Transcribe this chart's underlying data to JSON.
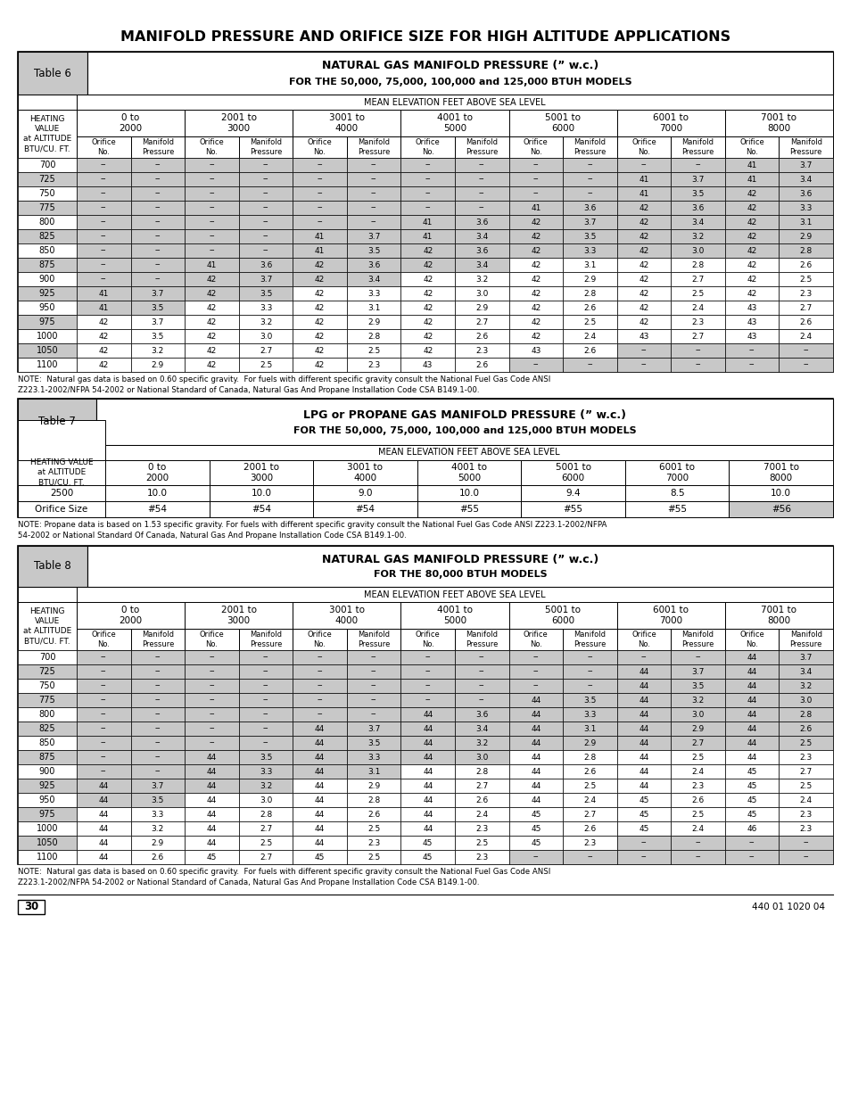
{
  "title": "MANIFOLD PRESSURE AND ORIFICE SIZE FOR HIGH ALTITUDE APPLICATIONS",
  "table6_header1": "NATURAL GAS MANIFOLD PRESSURE (” w.c.)",
  "table6_header2": "FOR THE 50,000, 75,000, 100,000 and 125,000 BTUH MODELS",
  "table7_header1": "LPG or PROPANE GAS MANIFOLD PRESSURE (” w.c.)",
  "table7_header2": "FOR THE 50,000, 75,000, 100,000 and 125,000 BTUH MODELS",
  "table8_header1": "NATURAL GAS MANIFOLD PRESSURE (” w.c.)",
  "table8_header2": "FOR THE 80,000 BTUH MODELS",
  "elevation_header": "MEAN ELEVATION FEET ABOVE SEA LEVEL",
  "elevation_ranges": [
    "0 to\n2000",
    "2001 to\n3000",
    "3001 to\n4000",
    "4001 to\n5000",
    "5001 to\n6000",
    "6001 to\n7000",
    "7001 to\n8000"
  ],
  "heating_label": "HEATING\nVALUE\nat ALTITUDE\nBTU/CU. FT.",
  "heating_label_t7": "HEATING VALUE\nat ALTITUDE\nBTU/CU. FT.",
  "btu_rows_t6": [
    700,
    725,
    750,
    775,
    800,
    825,
    850,
    875,
    900,
    925,
    950,
    975,
    1000,
    1050,
    1100
  ],
  "table6_data": [
    [
      "--",
      "--",
      "--",
      "--",
      "--",
      "--",
      "--",
      "--",
      "--",
      "--",
      "--",
      "--",
      "41",
      "3.7"
    ],
    [
      "--",
      "--",
      "--",
      "--",
      "--",
      "--",
      "--",
      "--",
      "--",
      "--",
      "41",
      "3.7",
      "41",
      "3.4"
    ],
    [
      "--",
      "--",
      "--",
      "--",
      "--",
      "--",
      "--",
      "--",
      "--",
      "--",
      "41",
      "3.5",
      "42",
      "3.6"
    ],
    [
      "--",
      "--",
      "--",
      "--",
      "--",
      "--",
      "--",
      "--",
      "41",
      "3.6",
      "42",
      "3.6",
      "42",
      "3.3"
    ],
    [
      "--",
      "--",
      "--",
      "--",
      "--",
      "--",
      "41",
      "3.6",
      "42",
      "3.7",
      "42",
      "3.4",
      "42",
      "3.1"
    ],
    [
      "--",
      "--",
      "--",
      "--",
      "41",
      "3.7",
      "41",
      "3.4",
      "42",
      "3.5",
      "42",
      "3.2",
      "42",
      "2.9"
    ],
    [
      "--",
      "--",
      "--",
      "--",
      "41",
      "3.5",
      "42",
      "3.6",
      "42",
      "3.3",
      "42",
      "3.0",
      "42",
      "2.8"
    ],
    [
      "--",
      "--",
      "41",
      "3.6",
      "42",
      "3.6",
      "42",
      "3.4",
      "42",
      "3.1",
      "42",
      "2.8",
      "42",
      "2.6"
    ],
    [
      "--",
      "--",
      "42",
      "3.7",
      "42",
      "3.4",
      "42",
      "3.2",
      "42",
      "2.9",
      "42",
      "2.7",
      "42",
      "2.5"
    ],
    [
      "41",
      "3.7",
      "42",
      "3.5",
      "42",
      "3.3",
      "42",
      "3.0",
      "42",
      "2.8",
      "42",
      "2.5",
      "42",
      "2.3"
    ],
    [
      "41",
      "3.5",
      "42",
      "3.3",
      "42",
      "3.1",
      "42",
      "2.9",
      "42",
      "2.6",
      "42",
      "2.4",
      "43",
      "2.7"
    ],
    [
      "42",
      "3.7",
      "42",
      "3.2",
      "42",
      "2.9",
      "42",
      "2.7",
      "42",
      "2.5",
      "42",
      "2.3",
      "43",
      "2.6"
    ],
    [
      "42",
      "3.5",
      "42",
      "3.0",
      "42",
      "2.8",
      "42",
      "2.6",
      "42",
      "2.4",
      "43",
      "2.7",
      "43",
      "2.4"
    ],
    [
      "42",
      "3.2",
      "42",
      "2.7",
      "42",
      "2.5",
      "42",
      "2.3",
      "43",
      "2.6",
      "--",
      "--",
      "--",
      "--"
    ],
    [
      "42",
      "2.9",
      "42",
      "2.5",
      "42",
      "2.3",
      "43",
      "2.6",
      "--",
      "--",
      "--",
      "--",
      "--",
      "--"
    ]
  ],
  "table6_shaded": {
    "0": [
      0,
      1,
      2,
      3,
      4,
      5,
      6,
      7,
      8,
      9,
      10,
      11,
      12,
      13
    ],
    "1": [
      0,
      1,
      2,
      3,
      4,
      5,
      6,
      7,
      8,
      9,
      10,
      11,
      12,
      13
    ],
    "2": [
      0,
      1,
      2,
      3,
      4,
      5,
      6,
      7,
      8,
      9,
      10,
      11,
      12,
      13
    ],
    "3": [
      0,
      1,
      2,
      3,
      4,
      5,
      6,
      7,
      8,
      9,
      10,
      11,
      12,
      13
    ],
    "4": [
      0,
      1,
      2,
      3,
      4,
      5,
      6,
      7,
      8,
      9,
      10,
      11,
      12,
      13
    ],
    "5": [
      0,
      1,
      2,
      3,
      4,
      5,
      6,
      7,
      8,
      9,
      10,
      11,
      12,
      13
    ],
    "6": [
      0,
      1,
      2,
      3,
      4,
      5,
      6,
      7,
      8,
      9,
      10,
      11,
      12,
      13
    ],
    "7": [
      0,
      1,
      2,
      3,
      4,
      5,
      6,
      7
    ],
    "8": [
      0,
      1,
      2,
      3,
      4,
      5
    ],
    "9": [
      0,
      1,
      2,
      3
    ],
    "10": [
      0,
      1
    ],
    "11": [],
    "12": [],
    "13": [
      10,
      11,
      12,
      13
    ],
    "14": [
      8,
      9,
      10,
      11,
      12,
      13
    ]
  },
  "table6_btu_shaded": [
    false,
    true,
    false,
    true,
    false,
    true,
    false,
    true,
    false,
    true,
    false,
    true,
    false,
    true,
    false
  ],
  "table7_btu": "2500",
  "table7_pressure": [
    "10.0",
    "10.0",
    "9.0",
    "10.0",
    "9.4",
    "8.5",
    "10.0"
  ],
  "table7_orifice": [
    "#54",
    "#54",
    "#54",
    "#55",
    "#55",
    "#55",
    "#56"
  ],
  "table7_shaded_orifice": [
    false,
    false,
    false,
    false,
    false,
    false,
    true
  ],
  "btu_rows_t8": [
    700,
    725,
    750,
    775,
    800,
    825,
    850,
    875,
    900,
    925,
    950,
    975,
    1000,
    1050,
    1100
  ],
  "table8_data": [
    [
      "--",
      "--",
      "--",
      "--",
      "--",
      "--",
      "--",
      "--",
      "--",
      "--",
      "--",
      "--",
      "44",
      "3.7"
    ],
    [
      "--",
      "--",
      "--",
      "--",
      "--",
      "--",
      "--",
      "--",
      "--",
      "--",
      "44",
      "3.7",
      "44",
      "3.4"
    ],
    [
      "--",
      "--",
      "--",
      "--",
      "--",
      "--",
      "--",
      "--",
      "--",
      "--",
      "44",
      "3.5",
      "44",
      "3.2"
    ],
    [
      "--",
      "--",
      "--",
      "--",
      "--",
      "--",
      "--",
      "--",
      "44",
      "3.5",
      "44",
      "3.2",
      "44",
      "3.0"
    ],
    [
      "--",
      "--",
      "--",
      "--",
      "--",
      "--",
      "44",
      "3.6",
      "44",
      "3.3",
      "44",
      "3.0",
      "44",
      "2.8"
    ],
    [
      "--",
      "--",
      "--",
      "--",
      "44",
      "3.7",
      "44",
      "3.4",
      "44",
      "3.1",
      "44",
      "2.9",
      "44",
      "2.6"
    ],
    [
      "--",
      "--",
      "--",
      "--",
      "44",
      "3.5",
      "44",
      "3.2",
      "44",
      "2.9",
      "44",
      "2.7",
      "44",
      "2.5"
    ],
    [
      "--",
      "--",
      "44",
      "3.5",
      "44",
      "3.3",
      "44",
      "3.0",
      "44",
      "2.8",
      "44",
      "2.5",
      "44",
      "2.3"
    ],
    [
      "--",
      "--",
      "44",
      "3.3",
      "44",
      "3.1",
      "44",
      "2.8",
      "44",
      "2.6",
      "44",
      "2.4",
      "45",
      "2.7"
    ],
    [
      "44",
      "3.7",
      "44",
      "3.2",
      "44",
      "2.9",
      "44",
      "2.7",
      "44",
      "2.5",
      "44",
      "2.3",
      "45",
      "2.5"
    ],
    [
      "44",
      "3.5",
      "44",
      "3.0",
      "44",
      "2.8",
      "44",
      "2.6",
      "44",
      "2.4",
      "45",
      "2.6",
      "45",
      "2.4"
    ],
    [
      "44",
      "3.3",
      "44",
      "2.8",
      "44",
      "2.6",
      "44",
      "2.4",
      "45",
      "2.7",
      "45",
      "2.5",
      "45",
      "2.3"
    ],
    [
      "44",
      "3.2",
      "44",
      "2.7",
      "44",
      "2.5",
      "44",
      "2.3",
      "45",
      "2.6",
      "45",
      "2.4",
      "46",
      "2.3"
    ],
    [
      "44",
      "2.9",
      "44",
      "2.5",
      "44",
      "2.3",
      "45",
      "2.5",
      "45",
      "2.3",
      "--",
      "--",
      "--",
      "--"
    ],
    [
      "44",
      "2.6",
      "45",
      "2.7",
      "45",
      "2.5",
      "45",
      "2.3",
      "--",
      "--",
      "--",
      "--",
      "--",
      "--"
    ]
  ],
  "table8_shaded": {
    "0": [
      0,
      1,
      2,
      3,
      4,
      5,
      6,
      7,
      8,
      9,
      10,
      11,
      12,
      13
    ],
    "1": [
      0,
      1,
      2,
      3,
      4,
      5,
      6,
      7,
      8,
      9,
      10,
      11,
      12,
      13
    ],
    "2": [
      0,
      1,
      2,
      3,
      4,
      5,
      6,
      7,
      8,
      9,
      10,
      11,
      12,
      13
    ],
    "3": [
      0,
      1,
      2,
      3,
      4,
      5,
      6,
      7,
      8,
      9,
      10,
      11,
      12,
      13
    ],
    "4": [
      0,
      1,
      2,
      3,
      4,
      5,
      6,
      7,
      8,
      9,
      10,
      11,
      12,
      13
    ],
    "5": [
      0,
      1,
      2,
      3,
      4,
      5,
      6,
      7,
      8,
      9,
      10,
      11,
      12,
      13
    ],
    "6": [
      0,
      1,
      2,
      3,
      4,
      5,
      6,
      7,
      8,
      9,
      10,
      11,
      12,
      13
    ],
    "7": [
      0,
      1,
      2,
      3,
      4,
      5,
      6,
      7
    ],
    "8": [
      0,
      1,
      2,
      3,
      4,
      5
    ],
    "9": [
      0,
      1,
      2,
      3
    ],
    "10": [
      0,
      1
    ],
    "11": [],
    "12": [],
    "13": [
      10,
      11,
      12,
      13
    ],
    "14": [
      8,
      9,
      10,
      11,
      12,
      13
    ]
  },
  "table8_btu_shaded": [
    false,
    true,
    false,
    true,
    false,
    true,
    false,
    true,
    false,
    true,
    false,
    true,
    false,
    true,
    false
  ],
  "note1": "NOTE:  Natural gas data is based on 0.60 specific gravity.  For fuels with different specific gravity consult the National Fuel Gas Code ANSI\nZ223.1-2002/NFPA 54-2002 or National Standard of Canada, Natural Gas And Propane Installation Code CSA B149.1-00.",
  "note2": "NOTE: Propane data is based on 1.53 specific gravity. For fuels with different specific gravity consult the National Fuel Gas Code ANSI Z223.1-2002/NFPA\n54-2002 or National Standard Of Canada, Natural Gas And Propane Installation Code CSA B149.1-00.",
  "note3": "NOTE:  Natural gas data is based on 0.60 specific gravity.  For fuels with different specific gravity consult the National Fuel Gas Code ANSI\nZ223.1-2002/NFPA 54-2002 or National Standard of Canada, Natural Gas And Propane Installation Code CSA B149.1-00.",
  "page_num": "30",
  "doc_num": "440 01 1020 04",
  "shade_color": "#c8c8c8"
}
